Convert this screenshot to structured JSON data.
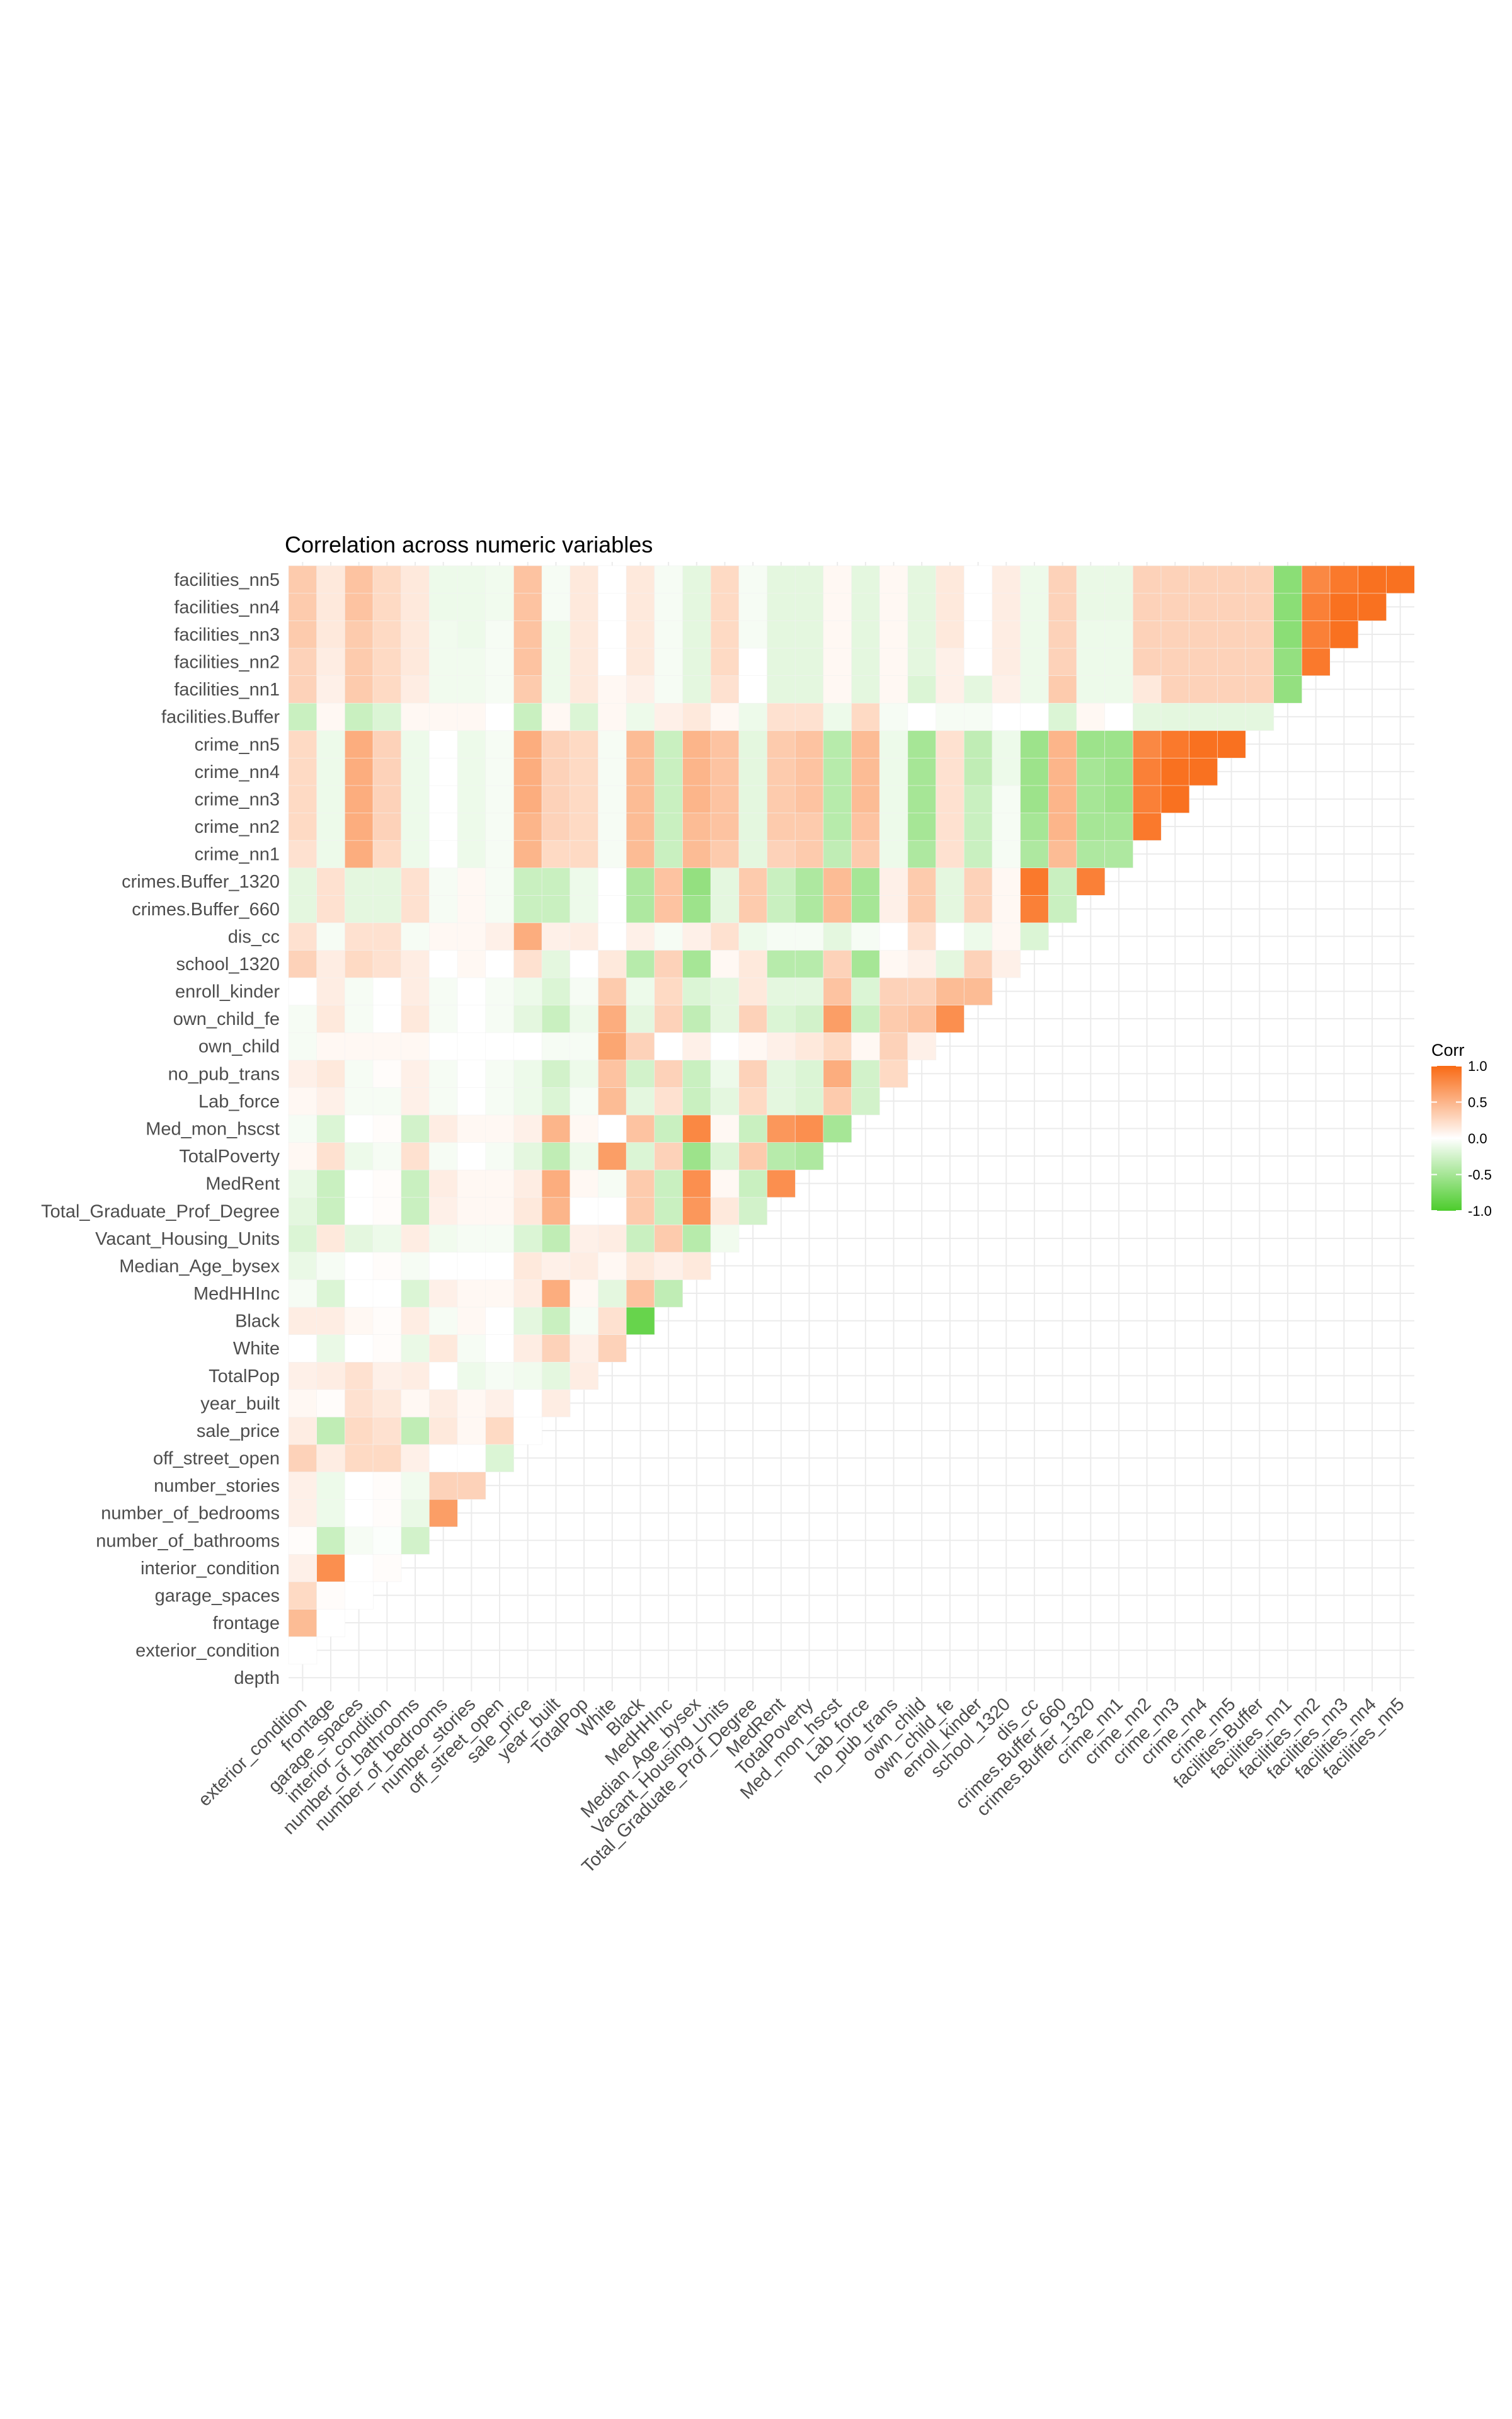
{
  "chart_data": {
    "type": "heatmap",
    "title": "Correlation across numeric variables",
    "layout": "lower-triangle",
    "variables": [
      "depth",
      "exterior_condition",
      "frontage",
      "garage_spaces",
      "interior_condition",
      "number_of_bathrooms",
      "number_of_bedrooms",
      "number_stories",
      "off_street_open",
      "sale_price",
      "year_built",
      "TotalPop",
      "White",
      "Black",
      "MedHHInc",
      "Median_Age_bysex",
      "Vacant_Housing_Units",
      "Total_Graduate_Prof_Degree",
      "MedRent",
      "TotalPoverty",
      "Med_mon_hscst",
      "Lab_force",
      "no_pub_trans",
      "own_child",
      "own_child_fe",
      "enroll_kinder",
      "school_1320",
      "dis_cc",
      "crimes.Buffer_660",
      "crimes.Buffer_1320",
      "crime_nn1",
      "crime_nn2",
      "crime_nn3",
      "crime_nn4",
      "crime_nn5",
      "facilities.Buffer",
      "facilities_nn1",
      "facilities_nn2",
      "facilities_nn3",
      "facilities_nn4",
      "facilities_nn5"
    ],
    "x_tick_labels": [
      "exterior_condition",
      "frontage",
      "garage_spaces",
      "interior_condition",
      "number_of_bathrooms",
      "number_of_bedrooms",
      "number_stories",
      "off_street_open",
      "sale_price",
      "year_built",
      "TotalPop",
      "White",
      "Black",
      "MedHHInc",
      "Median_Age_bysex",
      "Vacant_Housing_Units",
      "Total_Graduate_Prof_Degree",
      "MedRent",
      "TotalPoverty",
      "Med_mon_hscst",
      "Lab_force",
      "no_pub_trans",
      "own_child",
      "own_child_fe",
      "enroll_kinder",
      "school_1320",
      "dis_cc",
      "crimes.Buffer_660",
      "crimes.Buffer_1320",
      "crime_nn1",
      "crime_nn2",
      "crime_nn3",
      "crime_nn4",
      "crime_nn5",
      "facilities.Buffer",
      "facilities_nn1",
      "facilities_nn2",
      "facilities_nn3",
      "facilities_nn4",
      "facilities_nn5"
    ],
    "y_tick_labels": [
      "depth",
      "exterior_condition",
      "frontage",
      "garage_spaces",
      "interior_condition",
      "number_of_bathrooms",
      "number_of_bedrooms",
      "number_stories",
      "off_street_open",
      "sale_price",
      "year_built",
      "TotalPop",
      "White",
      "Black",
      "MedHHInc",
      "Median_Age_bysex",
      "Vacant_Housing_Units",
      "Total_Graduate_Prof_Degree",
      "MedRent",
      "TotalPoverty",
      "Med_mon_hscst",
      "Lab_force",
      "no_pub_trans",
      "own_child",
      "own_child_fe",
      "enroll_kinder",
      "school_1320",
      "dis_cc",
      "crimes.Buffer_660",
      "crimes.Buffer_1320",
      "crime_nn1",
      "crime_nn2",
      "crime_nn3",
      "crime_nn4",
      "crime_nn5",
      "facilities.Buffer",
      "facilities_nn1",
      "facilities_nn2",
      "facilities_nn3",
      "facilities_nn4",
      "facilities_nn5"
    ],
    "legend": {
      "title": "Corr",
      "ticks": [
        1.0,
        0.5,
        0.0,
        -0.5,
        -1.0
      ],
      "tick_labels": [
        "1.0",
        "0.5",
        "0.0",
        "-0.5",
        "-1.0"
      ],
      "colors": {
        "low": "#4ccc2c",
        "mid": "#ffffff",
        "high": "#f96a14"
      },
      "range": [
        -1,
        1
      ],
      "placement": "right"
    },
    "grid": true,
    "cells": [
      {
        "row": "exterior_condition",
        "values": [
          0.0
        ]
      },
      {
        "row": "frontage",
        "values": [
          0.45,
          0.0
        ]
      },
      {
        "row": "garage_spaces",
        "values": [
          0.25,
          0.02,
          0.0
        ]
      },
      {
        "row": "interior_condition",
        "values": [
          0.1,
          0.75,
          0.0,
          0.02
        ]
      },
      {
        "row": "number_of_bathrooms",
        "values": [
          0.02,
          -0.3,
          -0.05,
          -0.02,
          -0.25
        ]
      },
      {
        "row": "number_of_bedrooms",
        "values": [
          0.1,
          -0.1,
          0.0,
          0.02,
          -0.12,
          0.65
        ]
      },
      {
        "row": "number_stories",
        "values": [
          0.1,
          -0.1,
          0.0,
          0.02,
          -0.08,
          0.3,
          0.3
        ]
      },
      {
        "row": "off_street_open",
        "values": [
          0.3,
          0.12,
          0.25,
          0.25,
          0.1,
          0.0,
          0.0,
          -0.2
        ]
      },
      {
        "row": "sale_price",
        "values": [
          0.12,
          -0.35,
          0.25,
          0.2,
          -0.35,
          0.15,
          0.05,
          0.25,
          0.0
        ]
      },
      {
        "row": "year_built",
        "values": [
          0.05,
          0.02,
          0.2,
          0.15,
          0.05,
          0.12,
          0.05,
          0.1,
          0.0,
          0.12
        ]
      },
      {
        "row": "TotalPop",
        "values": [
          0.1,
          0.12,
          0.2,
          0.1,
          0.12,
          0.0,
          -0.1,
          -0.05,
          -0.08,
          -0.15,
          0.12
        ]
      },
      {
        "row": "White",
        "values": [
          0.0,
          -0.12,
          0.0,
          0.02,
          -0.12,
          0.15,
          -0.05,
          0.0,
          0.12,
          0.3,
          0.1,
          0.3
        ]
      },
      {
        "row": "Black",
        "values": [
          0.12,
          0.12,
          0.05,
          0.02,
          0.12,
          -0.05,
          0.05,
          0.0,
          -0.15,
          -0.3,
          -0.05,
          0.2,
          -0.85
        ]
      },
      {
        "row": "MedHHInc",
        "values": [
          -0.05,
          -0.2,
          0.0,
          0.0,
          -0.2,
          0.1,
          0.05,
          0.05,
          0.12,
          0.55,
          0.05,
          -0.15,
          0.4,
          -0.35
        ]
      },
      {
        "row": "Median_Age_bysex",
        "values": [
          -0.12,
          -0.05,
          0.0,
          0.02,
          -0.05,
          0.0,
          0.0,
          0.0,
          0.15,
          0.1,
          0.12,
          0.05,
          0.15,
          0.1,
          0.15
        ]
      },
      {
        "row": "Vacant_Housing_Units",
        "values": [
          -0.2,
          0.15,
          -0.15,
          -0.1,
          0.12,
          -0.08,
          -0.05,
          -0.05,
          -0.2,
          -0.35,
          0.1,
          0.12,
          -0.3,
          0.35,
          -0.4,
          -0.08
        ]
      },
      {
        "row": "Total_Graduate_Prof_Degree",
        "values": [
          -0.15,
          -0.3,
          0.0,
          0.02,
          -0.3,
          0.1,
          0.05,
          0.05,
          0.15,
          0.5,
          0.0,
          0.0,
          0.35,
          -0.3,
          0.7,
          0.15,
          -0.25
        ]
      },
      {
        "row": "MedRent",
        "values": [
          -0.12,
          -0.3,
          0.0,
          0.02,
          -0.3,
          0.12,
          0.05,
          0.05,
          0.12,
          0.55,
          0.05,
          -0.05,
          0.35,
          -0.3,
          0.75,
          0.05,
          -0.3,
          0.75
        ]
      },
      {
        "row": "TotalPoverty",
        "values": [
          0.05,
          0.2,
          -0.1,
          -0.05,
          0.2,
          -0.05,
          0.0,
          -0.05,
          -0.15,
          -0.35,
          -0.1,
          0.65,
          -0.2,
          0.3,
          -0.55,
          -0.2,
          0.35,
          -0.4,
          -0.45
        ]
      },
      {
        "row": "Med_mon_hscst",
        "values": [
          -0.05,
          -0.2,
          0.0,
          0.02,
          -0.25,
          0.12,
          0.05,
          0.05,
          0.1,
          0.5,
          0.05,
          0.0,
          0.4,
          -0.3,
          0.8,
          0.05,
          -0.3,
          0.7,
          0.75,
          -0.5
        ]
      },
      {
        "row": "Lab_force",
        "values": [
          0.05,
          0.1,
          -0.05,
          -0.05,
          0.1,
          -0.05,
          0.0,
          -0.05,
          -0.1,
          -0.2,
          -0.05,
          0.45,
          -0.15,
          0.2,
          -0.3,
          -0.15,
          0.25,
          -0.15,
          -0.2,
          0.35,
          -0.25
        ]
      },
      {
        "row": "no_pub_trans",
        "values": [
          0.1,
          0.15,
          -0.05,
          0.02,
          0.1,
          -0.05,
          0.0,
          -0.05,
          -0.1,
          -0.25,
          -0.1,
          0.4,
          -0.25,
          0.3,
          -0.3,
          -0.1,
          0.3,
          -0.15,
          -0.2,
          0.55,
          -0.25,
          0.25
        ]
      },
      {
        "row": "own_child",
        "values": [
          -0.05,
          0.05,
          0.05,
          0.05,
          0.05,
          0.0,
          0.0,
          0.0,
          0.0,
          -0.05,
          -0.05,
          0.6,
          0.3,
          0.0,
          0.1,
          0.0,
          0.05,
          0.1,
          0.15,
          0.25,
          0.05,
          0.3,
          0.1
        ]
      },
      {
        "row": "own_child_fe",
        "values": [
          -0.05,
          0.15,
          -0.05,
          0.0,
          0.15,
          -0.05,
          0.0,
          -0.05,
          -0.15,
          -0.3,
          -0.1,
          0.55,
          -0.15,
          0.3,
          -0.35,
          -0.15,
          0.3,
          -0.2,
          -0.25,
          0.65,
          -0.3,
          0.35,
          0.4,
          0.75
        ]
      },
      {
        "row": "enroll_kinder",
        "values": [
          0.0,
          0.12,
          -0.05,
          0.0,
          0.12,
          -0.05,
          0.0,
          -0.05,
          -0.1,
          -0.2,
          -0.05,
          0.35,
          -0.1,
          0.25,
          -0.2,
          -0.15,
          0.15,
          -0.15,
          -0.15,
          0.4,
          -0.2,
          0.3,
          0.3,
          0.45,
          0.45
        ]
      },
      {
        "row": "school_1320",
        "values": [
          0.3,
          0.12,
          0.25,
          0.2,
          0.12,
          0.0,
          0.05,
          0.0,
          0.2,
          -0.15,
          0.0,
          0.15,
          -0.4,
          0.3,
          -0.5,
          0.05,
          0.15,
          -0.4,
          -0.4,
          0.3,
          -0.5,
          0.05,
          0.1,
          -0.15,
          0.3,
          0.1
        ]
      },
      {
        "row": "dis_cc",
        "values": [
          0.2,
          -0.05,
          0.2,
          0.2,
          -0.05,
          0.05,
          0.05,
          0.1,
          0.55,
          0.1,
          0.12,
          0.0,
          0.1,
          -0.05,
          0.1,
          0.2,
          -0.1,
          -0.05,
          -0.05,
          -0.15,
          -0.05,
          0.0,
          0.2,
          0.0,
          -0.1,
          0.05,
          -0.2
        ]
      },
      {
        "row": "crimes.Buffer_660",
        "values": [
          -0.15,
          0.2,
          -0.15,
          -0.15,
          0.2,
          -0.05,
          0.05,
          -0.05,
          -0.3,
          -0.3,
          -0.1,
          0.0,
          -0.45,
          0.4,
          -0.55,
          -0.15,
          0.35,
          -0.3,
          -0.45,
          0.45,
          -0.5,
          0.1,
          0.35,
          -0.15,
          0.3,
          0.05,
          0.85,
          -0.3
        ]
      },
      {
        "row": "crimes.Buffer_1320",
        "values": [
          -0.15,
          0.2,
          -0.15,
          -0.15,
          0.2,
          -0.05,
          0.05,
          -0.05,
          -0.3,
          -0.3,
          -0.1,
          0.0,
          -0.45,
          0.4,
          -0.6,
          -0.15,
          0.35,
          -0.3,
          -0.45,
          0.45,
          -0.5,
          0.1,
          0.35,
          -0.15,
          0.3,
          0.05,
          0.9,
          -0.3,
          0.85
        ]
      },
      {
        "row": "crime_nn1",
        "values": [
          0.2,
          -0.1,
          0.55,
          0.25,
          -0.1,
          0.0,
          -0.1,
          -0.05,
          0.5,
          0.25,
          0.25,
          -0.05,
          0.45,
          -0.3,
          0.45,
          0.35,
          -0.15,
          0.3,
          0.35,
          -0.35,
          0.35,
          -0.1,
          -0.45,
          0.2,
          -0.3,
          -0.05,
          -0.45,
          0.45,
          -0.45,
          -0.45
        ]
      },
      {
        "row": "crime_nn2",
        "values": [
          0.25,
          -0.1,
          0.55,
          0.3,
          -0.1,
          0.0,
          -0.1,
          -0.05,
          0.5,
          0.3,
          0.25,
          -0.05,
          0.45,
          -0.3,
          0.45,
          0.4,
          -0.15,
          0.35,
          0.35,
          -0.4,
          0.4,
          -0.1,
          -0.5,
          0.2,
          -0.3,
          -0.05,
          -0.5,
          0.5,
          -0.5,
          -0.5,
          0.9
        ]
      },
      {
        "row": "crime_nn3",
        "values": [
          0.25,
          -0.1,
          0.55,
          0.3,
          -0.1,
          0.0,
          -0.1,
          -0.05,
          0.55,
          0.3,
          0.25,
          -0.05,
          0.45,
          -0.3,
          0.5,
          0.4,
          -0.15,
          0.35,
          0.4,
          -0.4,
          0.45,
          -0.1,
          -0.5,
          0.2,
          -0.3,
          -0.05,
          -0.55,
          0.5,
          -0.5,
          -0.55,
          0.85,
          0.95
        ]
      },
      {
        "row": "crime_nn4",
        "values": [
          0.25,
          -0.1,
          0.55,
          0.3,
          -0.1,
          0.0,
          -0.1,
          -0.05,
          0.55,
          0.3,
          0.25,
          -0.05,
          0.45,
          -0.3,
          0.5,
          0.4,
          -0.15,
          0.35,
          0.4,
          -0.4,
          0.45,
          -0.1,
          -0.5,
          0.2,
          -0.35,
          -0.1,
          -0.55,
          0.5,
          -0.5,
          -0.55,
          0.85,
          0.95,
          0.95
        ]
      },
      {
        "row": "crime_nn5",
        "values": [
          0.25,
          -0.1,
          0.55,
          0.3,
          -0.1,
          0.0,
          -0.1,
          -0.05,
          0.55,
          0.3,
          0.25,
          -0.05,
          0.45,
          -0.3,
          0.5,
          0.4,
          -0.15,
          0.35,
          0.4,
          -0.4,
          0.45,
          -0.1,
          -0.5,
          0.2,
          -0.35,
          -0.1,
          -0.55,
          0.5,
          -0.55,
          -0.55,
          0.8,
          0.9,
          0.95,
          0.95
        ]
      },
      {
        "row": "facilities.Buffer",
        "values": [
          -0.3,
          0.05,
          -0.3,
          -0.2,
          0.05,
          0.05,
          0.05,
          0.0,
          -0.3,
          0.05,
          -0.2,
          0.05,
          -0.1,
          0.1,
          0.15,
          0.05,
          -0.1,
          0.2,
          0.2,
          -0.1,
          0.25,
          -0.05,
          0.0,
          -0.05,
          -0.05,
          0.0,
          0.0,
          -0.2,
          0.05,
          0.0,
          -0.15,
          -0.15,
          -0.15,
          -0.15,
          -0.15
        ]
      },
      {
        "row": "facilities_nn1",
        "values": [
          0.3,
          0.1,
          0.35,
          0.25,
          0.12,
          -0.08,
          -0.08,
          -0.05,
          0.35,
          -0.1,
          0.15,
          0.05,
          0.1,
          -0.05,
          -0.15,
          0.2,
          0.0,
          -0.15,
          -0.15,
          0.05,
          -0.15,
          0.05,
          -0.2,
          0.1,
          -0.15,
          0.1,
          -0.1,
          0.35,
          -0.1,
          -0.1,
          0.15,
          0.3,
          0.3,
          0.3,
          0.3,
          -0.6
        ]
      },
      {
        "row": "facilities_nn2",
        "values": [
          0.3,
          0.12,
          0.35,
          0.25,
          0.15,
          -0.08,
          -0.08,
          -0.05,
          0.4,
          -0.1,
          0.15,
          0.0,
          0.15,
          -0.05,
          -0.15,
          0.25,
          0.0,
          -0.15,
          -0.15,
          0.05,
          -0.15,
          0.05,
          -0.15,
          0.1,
          0.0,
          0.12,
          -0.1,
          0.3,
          -0.1,
          -0.1,
          0.3,
          0.3,
          0.3,
          0.3,
          0.3,
          -0.6,
          0.9
        ]
      },
      {
        "row": "facilities_nn3",
        "values": [
          0.35,
          0.15,
          0.35,
          0.25,
          0.15,
          -0.08,
          -0.1,
          -0.05,
          0.4,
          -0.1,
          0.15,
          0.0,
          0.15,
          -0.05,
          -0.15,
          0.25,
          -0.05,
          -0.15,
          -0.15,
          0.05,
          -0.15,
          0.05,
          -0.15,
          0.15,
          0.0,
          0.12,
          -0.1,
          0.3,
          -0.1,
          -0.1,
          0.3,
          0.3,
          0.3,
          0.3,
          0.3,
          -0.65,
          0.85,
          0.95
        ]
      },
      {
        "row": "facilities_nn4",
        "values": [
          0.35,
          0.15,
          0.4,
          0.25,
          0.15,
          -0.1,
          -0.1,
          -0.08,
          0.4,
          -0.05,
          0.15,
          0.0,
          0.15,
          -0.05,
          -0.15,
          0.25,
          -0.05,
          -0.15,
          -0.15,
          0.05,
          -0.15,
          0.05,
          -0.15,
          0.15,
          0.0,
          0.12,
          -0.1,
          0.3,
          -0.12,
          -0.12,
          0.3,
          0.3,
          0.3,
          0.3,
          0.3,
          -0.65,
          0.85,
          0.95,
          0.95
        ]
      },
      {
        "row": "facilities_nn5",
        "values": [
          0.35,
          0.15,
          0.4,
          0.25,
          0.15,
          -0.1,
          -0.1,
          -0.08,
          0.4,
          -0.05,
          0.15,
          0.0,
          0.15,
          -0.05,
          -0.15,
          0.25,
          -0.05,
          -0.15,
          -0.15,
          0.05,
          -0.15,
          0.05,
          -0.15,
          0.15,
          0.0,
          0.12,
          -0.1,
          0.3,
          -0.12,
          -0.12,
          0.3,
          0.3,
          0.3,
          0.3,
          0.3,
          -0.65,
          0.8,
          0.9,
          0.95,
          0.95
        ]
      }
    ]
  }
}
